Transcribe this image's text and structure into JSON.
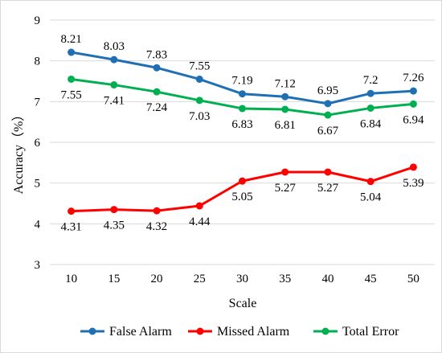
{
  "chart_data": {
    "type": "line",
    "title": "",
    "xlabel": "Scale",
    "ylabel": "Accuracy（%）",
    "x": [
      "10",
      "15",
      "20",
      "25",
      "30",
      "35",
      "40",
      "45",
      "50"
    ],
    "yticks": [
      "3",
      "4",
      "5",
      "6",
      "7",
      "8",
      "9"
    ],
    "ylim": [
      3,
      9
    ],
    "grid": "horizontal",
    "legend_position": "bottom",
    "series": [
      {
        "name": "False Alarm",
        "color": "#1f6fb5",
        "values": [
          8.21,
          8.03,
          7.83,
          7.55,
          7.19,
          7.12,
          6.95,
          7.2,
          7.26
        ],
        "labels": [
          "8.21",
          "8.03",
          "7.83",
          "7.55",
          "7.19",
          "7.12",
          "6.95",
          "7.2",
          "7.26"
        ],
        "label_position": "above"
      },
      {
        "name": "Missed Alarm",
        "color": "#ff0000",
        "values": [
          4.31,
          4.35,
          4.32,
          4.44,
          5.05,
          5.27,
          5.27,
          5.04,
          5.39
        ],
        "labels": [
          "4.31",
          "4.35",
          "4.32",
          "4.44",
          "5.05",
          "5.27",
          "5.27",
          "5.04",
          "5.39"
        ],
        "label_position": "below"
      },
      {
        "name": "Total Error",
        "color": "#00b050",
        "values": [
          7.55,
          7.41,
          7.24,
          7.03,
          6.83,
          6.81,
          6.67,
          6.84,
          6.94
        ],
        "labels": [
          "7.55",
          "7.41",
          "7.24",
          "7.03",
          "6.83",
          "6.81",
          "6.67",
          "6.84",
          "6.94"
        ],
        "label_position": "below"
      }
    ]
  }
}
